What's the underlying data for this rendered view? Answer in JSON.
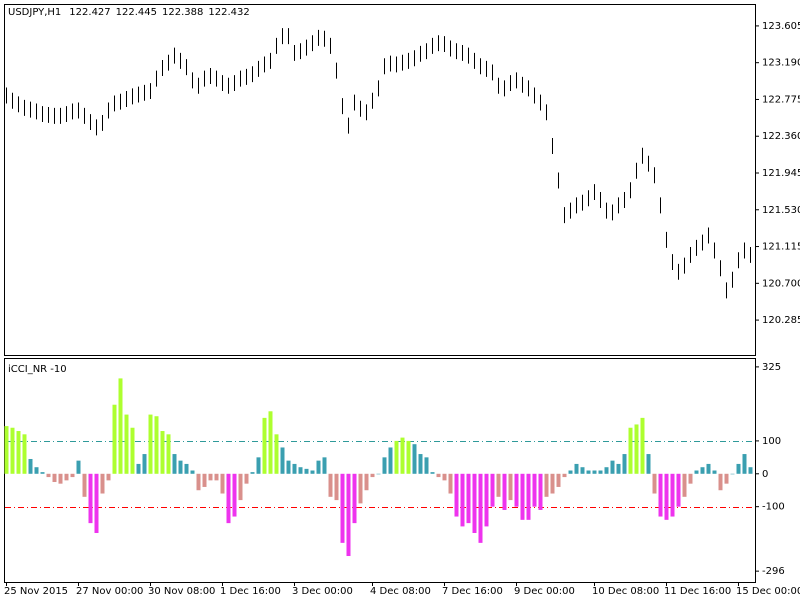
{
  "chart_data": [
    {
      "type": "ohlc",
      "title": "USDJPY,H1",
      "quote": [
        122.427,
        122.445,
        122.388,
        122.432
      ],
      "color": "#000000",
      "ylim": [
        119.891,
        123.841
      ],
      "yticks": [
        123.605,
        {
          "value": 123.19,
          "label": "123.190"
        },
        122.775,
        {
          "value": 122.36,
          "label": "122.360"
        },
        121.945,
        {
          "value": 121.53,
          "label": "121.530"
        },
        121.115,
        {
          "value": 120.7,
          "label": "120.700"
        },
        120.285
      ],
      "high": [
        122.91,
        122.85,
        122.81,
        122.77,
        122.75,
        122.73,
        122.7,
        122.69,
        122.68,
        122.68,
        122.7,
        122.73,
        122.74,
        122.68,
        122.61,
        122.55,
        122.6,
        122.74,
        122.82,
        122.84,
        122.87,
        122.9,
        122.92,
        122.94,
        122.96,
        123.1,
        123.22,
        123.28,
        123.36,
        123.3,
        123.23,
        123.08,
        123.02,
        123.1,
        123.13,
        123.1,
        123.05,
        123.02,
        123.05,
        123.1,
        123.12,
        123.15,
        123.21,
        123.26,
        123.3,
        123.47,
        123.58,
        123.58,
        123.39,
        123.41,
        123.45,
        123.5,
        123.56,
        123.55,
        123.47,
        123.19,
        122.79,
        122.57,
        122.83,
        122.76,
        122.72,
        122.85,
        122.99,
        123.24,
        123.27,
        123.26,
        123.28,
        123.3,
        123.33,
        123.38,
        123.41,
        123.47,
        123.5,
        123.49,
        123.44,
        123.41,
        123.39,
        123.36,
        123.3,
        123.24,
        123.21,
        123.17,
        123.02,
        122.99,
        123.05,
        123.08,
        123.03,
        122.99,
        122.91,
        122.83,
        122.72,
        122.34,
        121.95,
        121.56,
        121.61,
        121.67,
        121.7,
        121.75,
        121.82,
        121.73,
        121.61,
        121.59,
        121.67,
        121.73,
        121.84,
        122.06,
        122.23,
        122.14,
        122.01,
        121.67,
        121.28,
        121.03,
        120.92,
        120.99,
        121.11,
        121.19,
        121.25,
        121.33,
        121.16,
        120.96,
        120.71,
        120.83,
        121.05,
        121.16,
        121.11
      ],
      "low": [
        122.73,
        122.67,
        122.63,
        122.59,
        122.57,
        122.55,
        122.52,
        122.51,
        122.5,
        122.5,
        122.52,
        122.55,
        122.56,
        122.5,
        122.43,
        122.37,
        122.42,
        122.56,
        122.64,
        122.66,
        122.69,
        122.72,
        122.74,
        122.76,
        122.78,
        122.92,
        123.04,
        123.1,
        123.18,
        123.12,
        123.05,
        122.9,
        122.84,
        122.92,
        122.95,
        122.92,
        122.87,
        122.84,
        122.87,
        122.92,
        122.94,
        122.97,
        123.03,
        123.08,
        123.12,
        123.29,
        123.4,
        123.4,
        123.21,
        123.23,
        123.27,
        123.32,
        123.38,
        123.37,
        123.29,
        123.01,
        122.61,
        122.39,
        122.65,
        122.58,
        122.54,
        122.67,
        122.81,
        123.06,
        123.09,
        123.08,
        123.1,
        123.12,
        123.15,
        123.2,
        123.23,
        123.29,
        123.32,
        123.31,
        123.26,
        123.23,
        123.21,
        123.18,
        123.12,
        123.06,
        123.03,
        122.99,
        122.84,
        122.81,
        122.87,
        122.9,
        122.85,
        122.81,
        122.73,
        122.65,
        122.54,
        122.16,
        121.77,
        121.38,
        121.43,
        121.49,
        121.52,
        121.57,
        121.64,
        121.55,
        121.43,
        121.41,
        121.49,
        121.55,
        121.66,
        121.88,
        122.05,
        121.96,
        121.83,
        121.49,
        121.1,
        120.85,
        120.74,
        120.81,
        120.93,
        121.01,
        121.07,
        121.15,
        120.98,
        120.78,
        120.53,
        120.65,
        120.87,
        120.98,
        120.93
      ]
    },
    {
      "type": "bar",
      "title": "iCCI_NR -10",
      "ylim": [
        -329,
        349
      ],
      "yticks": [
        325,
        100,
        0,
        -100,
        -296
      ],
      "palette": [
        "#adff2f",
        "#3a9fb0",
        "#d9908c",
        "#ee33ee"
      ],
      "levels": [
        {
          "value": 100,
          "color": "#2f9a9a"
        },
        {
          "value": -100,
          "color": "#ff0000"
        }
      ],
      "values": [
        145,
        140,
        130,
        120,
        45,
        20,
        5,
        -10,
        -25,
        -30,
        -20,
        -10,
        40,
        -70,
        -150,
        -180,
        -60,
        -20,
        210,
        290,
        180,
        140,
        30,
        60,
        180,
        175,
        130,
        120,
        60,
        40,
        30,
        10,
        -50,
        -40,
        -20,
        -20,
        -60,
        -150,
        -130,
        -80,
        -30,
        5,
        50,
        170,
        190,
        120,
        80,
        40,
        30,
        20,
        15,
        10,
        40,
        50,
        -70,
        -80,
        -210,
        -250,
        -150,
        -90,
        -50,
        -10,
        0,
        50,
        80,
        100,
        110,
        100,
        90,
        60,
        50,
        5,
        -10,
        -20,
        -60,
        -130,
        -160,
        -150,
        -180,
        -210,
        -160,
        -100,
        -70,
        -110,
        -80,
        -100,
        -140,
        -140,
        -100,
        -110,
        -70,
        -60,
        -40,
        -10,
        10,
        30,
        20,
        10,
        10,
        10,
        20,
        40,
        30,
        60,
        140,
        150,
        170,
        60,
        -60,
        -130,
        -140,
        -130,
        -100,
        -70,
        -30,
        10,
        20,
        30,
        10,
        -50,
        -30,
        0,
        30,
        60,
        20
      ],
      "x_labels": [
        {
          "index": 0,
          "label": "25 Nov 2015"
        },
        {
          "index": 12,
          "label": "27 Nov 00:00"
        },
        {
          "index": 24,
          "label": "30 Nov 08:00"
        },
        {
          "index": 36,
          "label": "1 Dec 16:00"
        },
        {
          "index": 48,
          "label": "3 Dec 00:00"
        },
        {
          "index": 61,
          "label": "4 Dec 08:00"
        },
        {
          "index": 73,
          "label": "7 Dec 16:00"
        },
        {
          "index": 85,
          "label": "9 Dec 00:00"
        },
        {
          "index": 98,
          "label": "10 Dec 08:00"
        },
        {
          "index": 110,
          "label": "11 Dec 16:00"
        },
        {
          "index": 122,
          "label": "15 Dec 00:00"
        }
      ]
    }
  ]
}
